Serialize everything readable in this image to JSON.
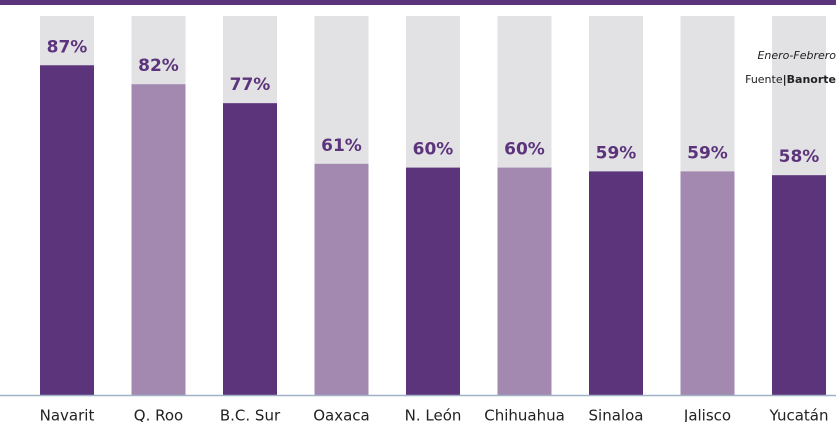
{
  "chart_data": {
    "type": "bar",
    "categories": [
      "Navarit",
      "Q. Roo",
      "B.C. Sur",
      "Oaxaca",
      "N. León",
      "Chihuahua",
      "Sinaloa",
      "Jalisco",
      "Yucatán"
    ],
    "values": [
      87,
      82,
      77,
      61,
      60,
      60,
      59,
      59,
      58
    ],
    "value_labels": [
      "87%",
      "82%",
      "77%",
      "61%",
      "60%",
      "60%",
      "59%",
      "59%",
      "58%"
    ],
    "colors": [
      "#5c347c",
      "#a388b0",
      "#5c347c",
      "#a388b0",
      "#5c347c",
      "#a388b0",
      "#5c347c",
      "#a388b0",
      "#5c347c"
    ],
    "ylim": [
      0,
      100
    ],
    "annotations": [
      "Enero-Febrero",
      "Fuente",
      "Banorte"
    ]
  }
}
